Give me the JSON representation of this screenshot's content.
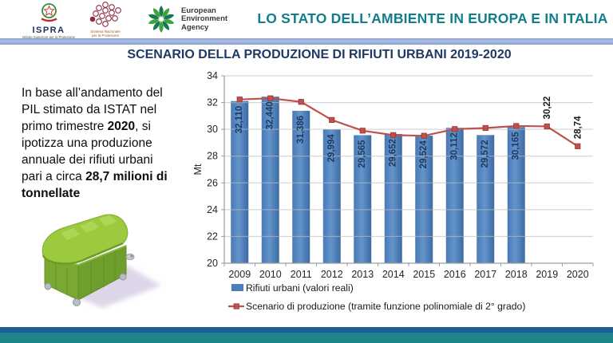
{
  "header": {
    "title": "LO STATO DELL’AMBIENTE IN EUROPA E IN ITALIA",
    "logos": {
      "ispra": {
        "name": "ISPRA",
        "subtitle_line1": "Istituto Superiore per la Protezione",
        "subtitle_line2": "e la Ricerca Ambientale"
      },
      "snpa": {
        "line1": "Sistema Nazionale",
        "line2": "per la Protezione",
        "line3": "dell’Ambiente"
      },
      "eea": {
        "line1": "European",
        "line2": "Environment",
        "line3": "Agency"
      }
    }
  },
  "slide": {
    "title": "SCENARIO DELLA PRODUZIONE DI RIFIUTI URBANI 2019-2020",
    "intro": {
      "text_1": "In base all’andamento del PIL stimato da ISTAT nel primo trimestre ",
      "bold_1": "2020",
      "text_2": ", si ipotizza una produzione annuale dei rifiuti urbani pari a circa ",
      "bold_2": "28,7 milioni di tonnellate"
    }
  },
  "chart_data": {
    "type": "bar",
    "subtype": "bar+line combo",
    "title": "",
    "xlabel": "",
    "ylabel": "Mt",
    "ylim": [
      20,
      34
    ],
    "ytick_step": 2,
    "grid": true,
    "legend_position": "bottom-left",
    "categories": [
      "2009",
      "2010",
      "2011",
      "2012",
      "2013",
      "2014",
      "2015",
      "2016",
      "2017",
      "2018",
      "2019",
      "2020"
    ],
    "series": [
      {
        "name": "Rifiuti urbani (valori reali)",
        "type": "bar",
        "color": "#4d7ebc",
        "values": [
          32.11,
          32.44,
          31.386,
          29.994,
          29.565,
          29.652,
          29.524,
          30.112,
          29.572,
          30.165,
          null,
          null
        ],
        "labels": [
          "32,110",
          "32,440",
          "31,386",
          "29,994",
          "29,565",
          "29,652",
          "29,524",
          "30,112",
          "29,572",
          "30,165",
          null,
          null
        ]
      },
      {
        "name": "Scenario di produzione (tramite funzione polinomiale di 2° grado)",
        "type": "line",
        "color": "#c0504d",
        "values": [
          32.23,
          32.32,
          32.05,
          30.7,
          29.9,
          29.57,
          29.52,
          30.02,
          30.1,
          30.25,
          30.22,
          28.74
        ],
        "labels": [
          null,
          null,
          null,
          null,
          null,
          null,
          null,
          null,
          null,
          null,
          "30,22",
          "28,74"
        ]
      }
    ]
  },
  "colors": {
    "header_title": "#117e8c",
    "slide_title": "#1f3864",
    "band": "#93a9d6",
    "bar": "#4d7ebc",
    "line": "#c0504d",
    "footer_blue": "#1e5b97",
    "footer_teal": "#1d868a"
  }
}
